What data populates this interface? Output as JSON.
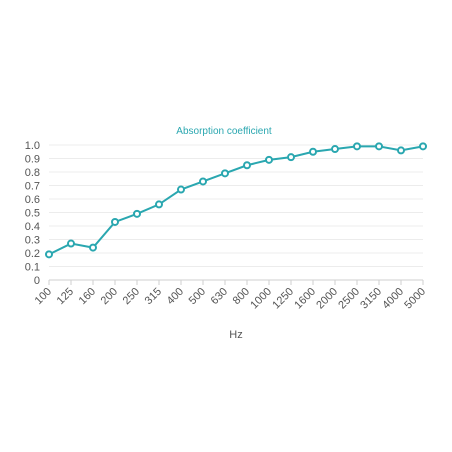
{
  "chart_data": {
    "type": "line",
    "title": "Absorption coefficient",
    "xlabel": "Hz",
    "ylabel": "",
    "categories": [
      "100",
      "125",
      "160",
      "200",
      "250",
      "315",
      "400",
      "500",
      "630",
      "800",
      "1000",
      "1250",
      "1600",
      "2000",
      "2500",
      "3150",
      "4000",
      "5000"
    ],
    "series": [
      {
        "values": [
          0.19,
          0.27,
          0.24,
          0.43,
          0.49,
          0.56,
          0.67,
          0.73,
          0.79,
          0.85,
          0.89,
          0.91,
          0.95,
          0.97,
          0.99,
          0.99,
          0.96,
          0.99
        ]
      }
    ],
    "ylim": [
      0,
      1.0
    ],
    "yticks": [
      "0",
      "0.1",
      "0.2",
      "0.3",
      "0.4",
      "0.5",
      "0.6",
      "0.7",
      "0.8",
      "0.9",
      "1.0"
    ],
    "grid": true,
    "legend": "none",
    "colors": {
      "series": "#2aa7b0",
      "title": "#2aa7b0",
      "grid": "#ececec",
      "axis": "#cfcfcf",
      "text": "#555555"
    }
  }
}
